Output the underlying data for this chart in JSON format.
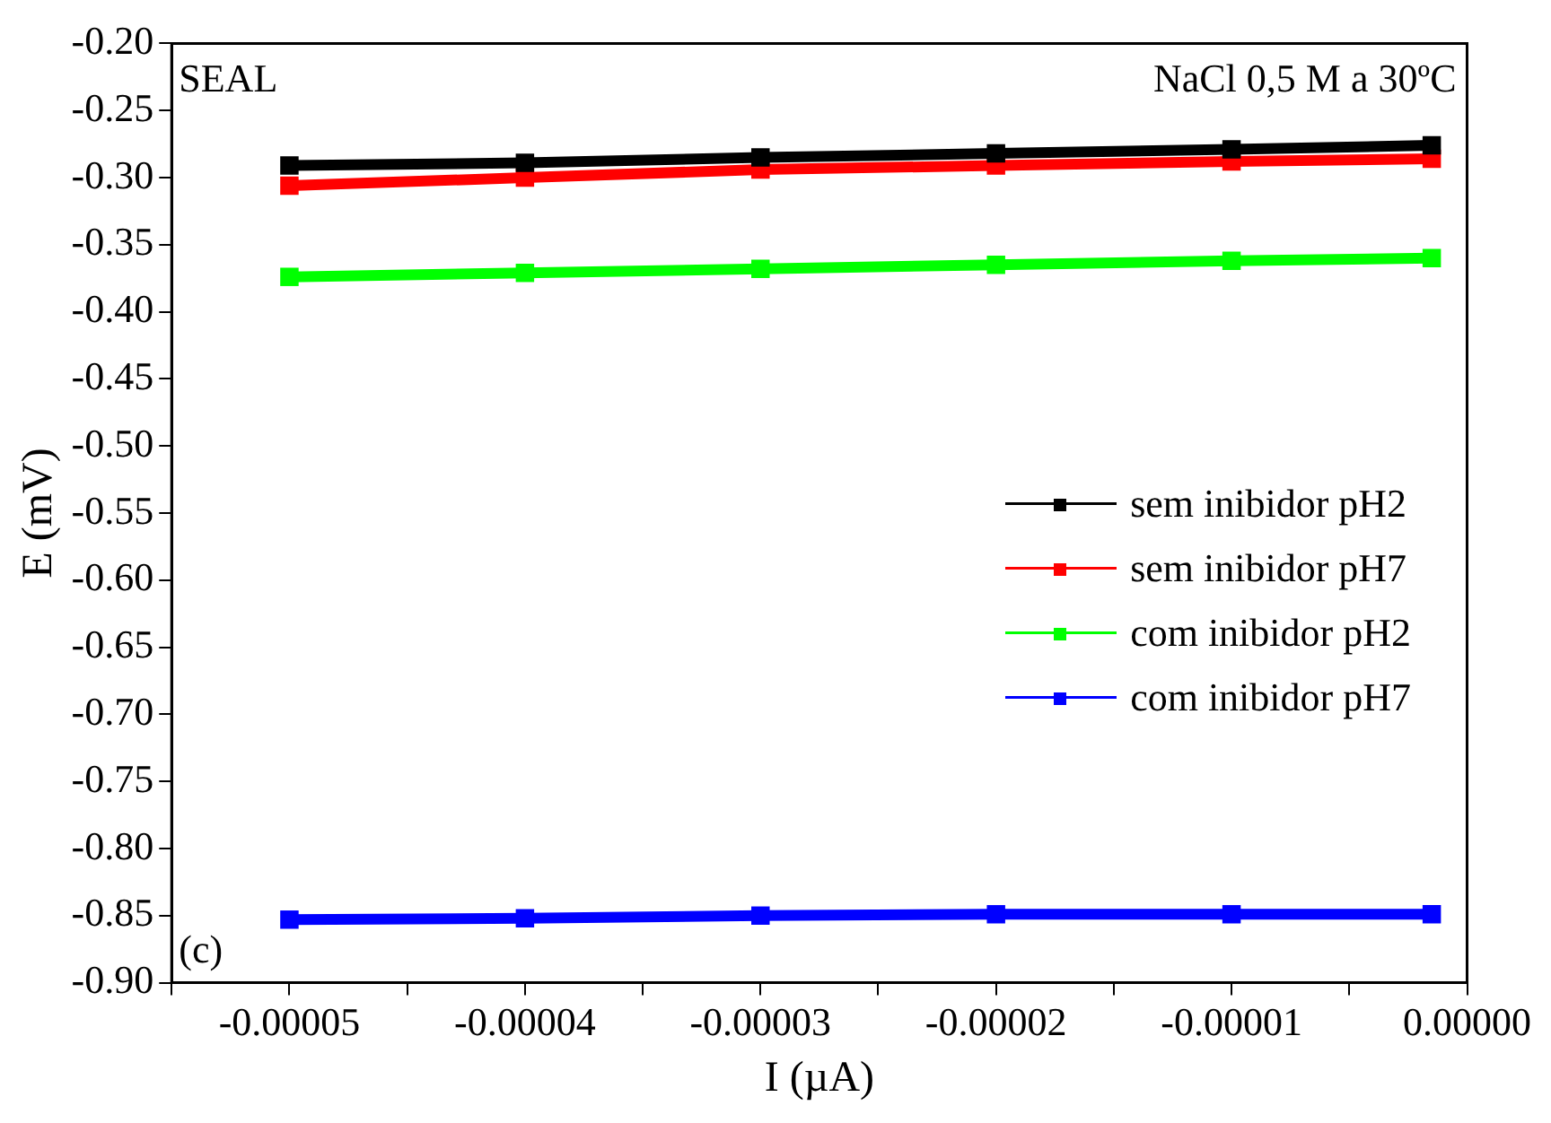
{
  "chart_data": {
    "type": "line",
    "xlabel": "I (µA)",
    "ylabel": "E (mV)",
    "annotations": [
      "SEAL",
      "NaCl 0,5 M a 30ºC",
      "(c)"
    ],
    "x": [
      -5e-05,
      -4e-05,
      -3e-05,
      -2e-05,
      -1e-05,
      -1.5e-06
    ],
    "series": [
      {
        "name": "sem inibidor pH2",
        "color": "#000000",
        "values": [
          -0.291,
          -0.289,
          -0.285,
          -0.282,
          -0.279,
          -0.276
        ]
      },
      {
        "name": "sem inibidor pH7",
        "color": "#ff0000",
        "values": [
          -0.306,
          -0.3,
          -0.294,
          -0.291,
          -0.288,
          -0.286
        ]
      },
      {
        "name": "com inibidor pH2",
        "color": "#00ff00",
        "values": [
          -0.374,
          -0.371,
          -0.368,
          -0.365,
          -0.362,
          -0.36
        ]
      },
      {
        "name": "com inibidor pH7",
        "color": "#0000ff",
        "values": [
          -0.853,
          -0.852,
          -0.85,
          -0.849,
          -0.849,
          -0.849
        ]
      }
    ],
    "xlim": [
      -5.5e-05,
      0
    ],
    "xticks": [
      {
        "value": -5.5e-05,
        "label": null
      },
      {
        "value": -5e-05,
        "label": "-0.00005"
      },
      {
        "value": -4.5e-05,
        "label": null
      },
      {
        "value": -4e-05,
        "label": "-0.00004"
      },
      {
        "value": -3.5e-05,
        "label": null
      },
      {
        "value": -3e-05,
        "label": "-0.00003"
      },
      {
        "value": -2.5e-05,
        "label": null
      },
      {
        "value": -2e-05,
        "label": "-0.00002"
      },
      {
        "value": -1.5e-05,
        "label": null
      },
      {
        "value": -1e-05,
        "label": "-0.00001"
      },
      {
        "value": -5e-06,
        "label": null
      },
      {
        "value": 0,
        "label": "0.00000"
      }
    ],
    "ylim": [
      -0.9,
      -0.2
    ],
    "yticks": [
      {
        "value": -0.9,
        "label": "-0.90"
      },
      {
        "value": -0.85,
        "label": "-0.85"
      },
      {
        "value": -0.8,
        "label": "-0.80"
      },
      {
        "value": -0.75,
        "label": "-0.75"
      },
      {
        "value": -0.7,
        "label": "-0.70"
      },
      {
        "value": -0.65,
        "label": "-0.65"
      },
      {
        "value": -0.6,
        "label": "-0.60"
      },
      {
        "value": -0.55,
        "label": "-0.55"
      },
      {
        "value": -0.5,
        "label": "-0.50"
      },
      {
        "value": -0.45,
        "label": "-0.45"
      },
      {
        "value": -0.4,
        "label": "-0.40"
      },
      {
        "value": -0.35,
        "label": "-0.35"
      },
      {
        "value": -0.3,
        "label": "-0.30"
      },
      {
        "value": -0.25,
        "label": "-0.25"
      },
      {
        "value": -0.2,
        "label": "-0.20"
      }
    ],
    "grid": false,
    "legend": "right",
    "marker": "square",
    "line_style": "solid"
  }
}
